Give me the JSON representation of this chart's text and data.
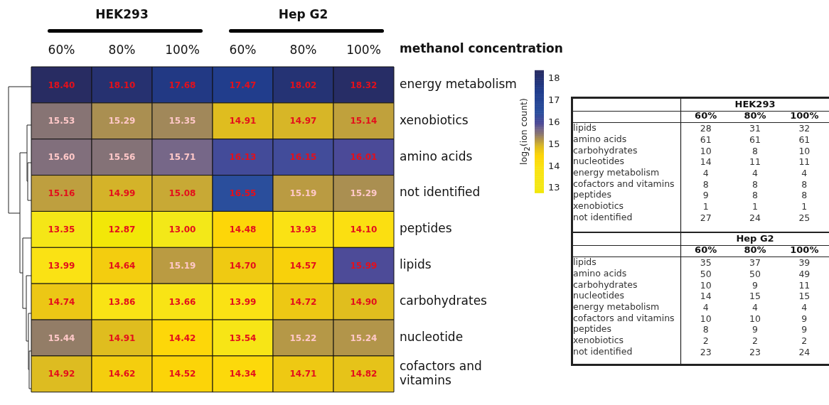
{
  "chart_data": [
    {
      "type": "heatmap",
      "xlabel": "methanol concentration",
      "annotations": [
        "HEK293",
        "Hep G2"
      ],
      "categories": [
        "60%",
        "80%",
        "100%",
        "60%",
        "80%",
        "100%"
      ],
      "y_categories": [
        "energy metabolism",
        "xenobiotics",
        "amino acids",
        "not identified",
        "peptides",
        "lipids",
        "carbohydrates",
        "nucleotide",
        "cofactors and vitamins"
      ],
      "cells": [
        [
          18.4,
          18.1,
          17.68,
          17.47,
          18.02,
          18.32
        ],
        [
          15.53,
          15.29,
          15.35,
          14.91,
          14.97,
          15.14
        ],
        [
          15.6,
          15.56,
          15.71,
          16.13,
          16.15,
          16.01
        ],
        [
          15.16,
          14.99,
          15.08,
          16.55,
          15.19,
          15.29
        ],
        [
          13.35,
          12.87,
          13.0,
          14.48,
          13.93,
          14.1
        ],
        [
          13.99,
          14.64,
          15.19,
          14.7,
          14.57,
          15.99
        ],
        [
          14.74,
          13.86,
          13.66,
          13.99,
          14.72,
          14.9
        ],
        [
          15.44,
          14.91,
          14.42,
          13.54,
          15.22,
          15.24
        ],
        [
          14.92,
          14.62,
          14.52,
          14.34,
          14.71,
          14.82
        ]
      ],
      "cell_labels": [
        [
          "18.40",
          "18.10",
          "17.68",
          "17.47",
          "18.02",
          "18.32"
        ],
        [
          "15.53",
          "15.29",
          "15.35",
          "14.91",
          "14.97",
          "15.14"
        ],
        [
          "15.60",
          "15.56",
          "15.71",
          "16.13",
          "16.15",
          "16.01"
        ],
        [
          "15.16",
          "14.99",
          "15.08",
          "16.55",
          "15.19",
          "15.29"
        ],
        [
          "13.35",
          "12.87",
          "13.00",
          "14.48",
          "13.93",
          "14.10"
        ],
        [
          "13.99",
          "14.64",
          "15.19",
          "14.70",
          "14.57",
          "15.99"
        ],
        [
          "14.74",
          "13.86",
          "13.66",
          "13.99",
          "14.72",
          "14.90"
        ],
        [
          "15.44",
          "14.91",
          "14.42",
          "13.54",
          "15.22",
          "15.24"
        ],
        [
          "14.92",
          "14.62",
          "14.52",
          "14.34",
          "14.71",
          "14.82"
        ]
      ],
      "clabel": "log$_{2}$(ion count)",
      "clim": [
        12.8,
        18.4
      ],
      "cticks": [
        13,
        14,
        15,
        16,
        17,
        18
      ]
    },
    {
      "type": "heatmap",
      "title": "HEK293",
      "categories": [
        "60%",
        "80%",
        "100%"
      ],
      "y_categories": [
        "lipids",
        "amino acids",
        "carbohydrates",
        "nucleotides",
        "energy metabolism",
        "cofactors and vitamins",
        "peptides",
        "xenobiotics",
        "not identified"
      ],
      "cells": [
        [
          28,
          31,
          32
        ],
        [
          61,
          61,
          61
        ],
        [
          10,
          8,
          10
        ],
        [
          14,
          11,
          11
        ],
        [
          4,
          4,
          4
        ],
        [
          8,
          8,
          8
        ],
        [
          9,
          8,
          8
        ],
        [
          1,
          1,
          1
        ],
        [
          27,
          24,
          25
        ]
      ],
      "data_labels": true
    },
    {
      "type": "heatmap",
      "title": "Hep G2",
      "categories": [
        "60%",
        "80%",
        "100%"
      ],
      "y_categories": [
        "lipids",
        "amino acids",
        "carbohydrates",
        "nucleotides",
        "energy metabolism",
        "cofactors and vitamins",
        "peptides",
        "xenobiotics",
        "not identified"
      ],
      "cells": [
        [
          35,
          37,
          39
        ],
        [
          50,
          50,
          49
        ],
        [
          10,
          9,
          11
        ],
        [
          14,
          15,
          15
        ],
        [
          4,
          4,
          4
        ],
        [
          10,
          10,
          9
        ],
        [
          8,
          9,
          9
        ],
        [
          2,
          2,
          2
        ],
        [
          23,
          23,
          24
        ]
      ],
      "data_labels": true
    }
  ]
}
